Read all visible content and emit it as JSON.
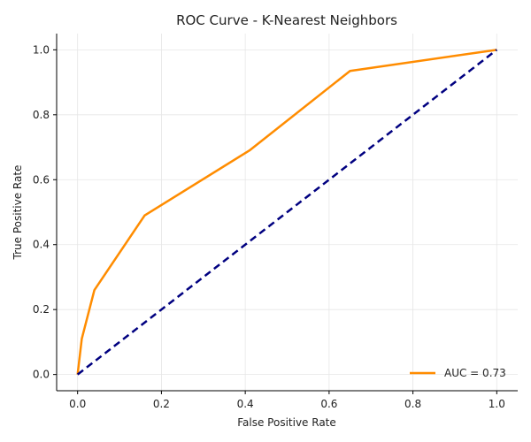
{
  "chart_data": {
    "type": "line",
    "title": "ROC Curve - K-Nearest Neighbors",
    "xlabel": "False Positive Rate",
    "ylabel": "True Positive Rate",
    "xlim": [
      -0.05,
      1.05
    ],
    "ylim": [
      -0.05,
      1.05
    ],
    "xticks": [
      0.0,
      0.2,
      0.4,
      0.6,
      0.8,
      1.0
    ],
    "yticks": [
      0.0,
      0.2,
      0.4,
      0.6,
      0.8,
      1.0
    ],
    "xtick_labels": [
      "0.0",
      "0.2",
      "0.4",
      "0.6",
      "0.8",
      "1.0"
    ],
    "ytick_labels": [
      "0.0",
      "0.2",
      "0.4",
      "0.6",
      "0.8",
      "1.0"
    ],
    "grid": true,
    "legend_position": "lower-right",
    "series": [
      {
        "name": "AUC = 0.73",
        "color": "#ff8c00",
        "x": [
          0.0,
          0.01,
          0.04,
          0.16,
          0.41,
          0.65,
          1.0
        ],
        "y": [
          0.0,
          0.11,
          0.26,
          0.49,
          0.69,
          0.935,
          1.0
        ]
      },
      {
        "color": "#000080",
        "style": "dashed",
        "x": [
          0.0,
          1.0
        ],
        "y": [
          0.0,
          1.0
        ]
      }
    ]
  }
}
